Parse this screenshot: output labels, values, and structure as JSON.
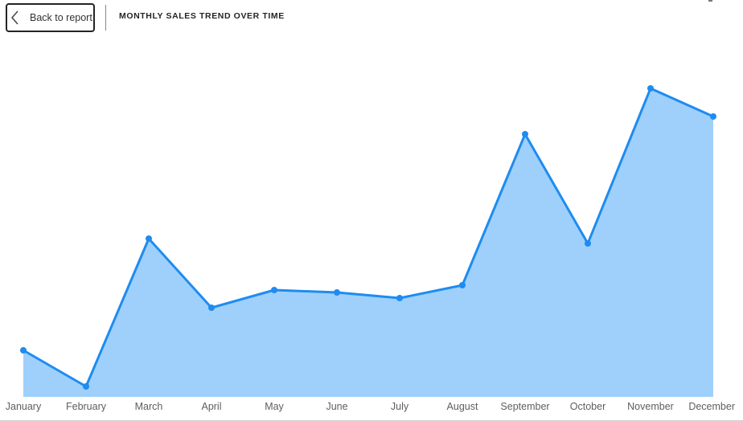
{
  "header": {
    "back_label": "Back to report",
    "title": "MONTHLY SALES TREND OVER TIME"
  },
  "icons": {
    "back": "chevron-left-icon"
  },
  "colors": {
    "line": "#1e8cf0",
    "area": "#9fd0fb",
    "text": "#605e5c"
  },
  "chart_data": {
    "type": "area",
    "title": "MONTHLY SALES TREND OVER TIME",
    "xlabel": "",
    "ylabel": "",
    "categories": [
      "January",
      "February",
      "March",
      "April",
      "May",
      "June",
      "July",
      "August",
      "September",
      "October",
      "November",
      "December"
    ],
    "series": [
      {
        "values": [
          58,
          13,
          197,
          111,
          133,
          130,
          123,
          139,
          327,
          191,
          384,
          349
        ]
      }
    ],
    "ylim": [
      0,
      400
    ],
    "markers": true,
    "grid": false,
    "legend": "none"
  }
}
